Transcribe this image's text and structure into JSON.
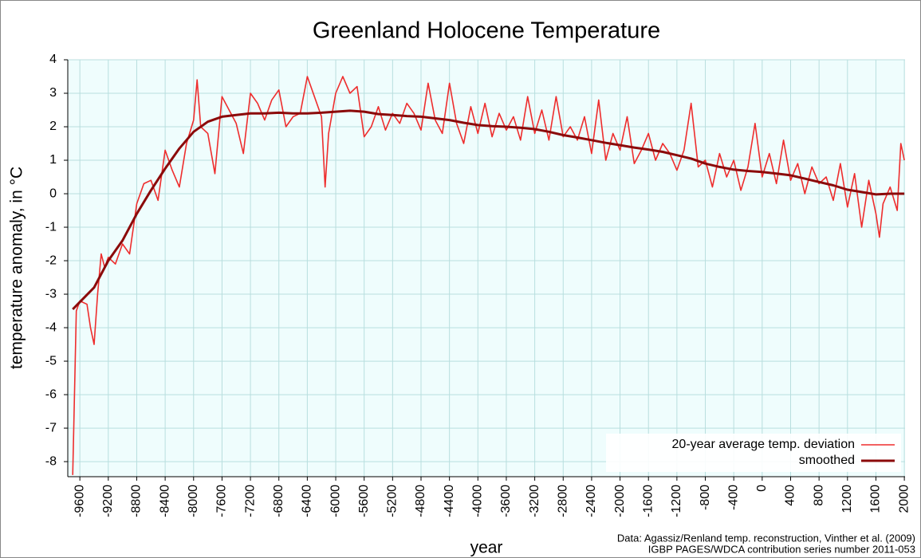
{
  "chart_data": {
    "type": "line",
    "title": "Greenland Holocene Temperature",
    "x_label": "year",
    "y_label": "temperature anomaly, in °C",
    "annotations": [
      "Data: Agassiz/Renland temp. reconstruction, Vinther et al. (2009)",
      "IGBP PAGES/WDCA contribution series number 2011-053"
    ],
    "xlim": [
      -9770,
      2010
    ],
    "ylim": [
      -8.45,
      4
    ],
    "xticks": [
      -9600,
      -9200,
      -8800,
      -8400,
      -8000,
      -7600,
      -7200,
      -6800,
      -6400,
      -6000,
      -5600,
      -5200,
      -4800,
      -4400,
      -4000,
      -3600,
      -3200,
      -2800,
      -2400,
      -2000,
      -1600,
      -1200,
      -800,
      -400,
      0,
      400,
      800,
      1200,
      1600,
      2000
    ],
    "yticks": [
      -8,
      -7,
      -6,
      -5,
      -4,
      -3,
      -2,
      -1,
      0,
      1,
      2,
      3,
      4
    ],
    "grid": true,
    "legend": "lower right",
    "background": "#effdfd",
    "series": [
      {
        "name": "20-year average temp. deviation",
        "color": "#ee2d2d",
        "width": 1.6,
        "x": [
          -9700,
          -9650,
          -9600,
          -9500,
          -9450,
          -9400,
          -9350,
          -9300,
          -9250,
          -9200,
          -9100,
          -9000,
          -8900,
          -8800,
          -8700,
          -8600,
          -8500,
          -8400,
          -8300,
          -8200,
          -8100,
          -8000,
          -7950,
          -7900,
          -7800,
          -7700,
          -7600,
          -7500,
          -7400,
          -7300,
          -7200,
          -7100,
          -7000,
          -6900,
          -6800,
          -6700,
          -6600,
          -6500,
          -6400,
          -6300,
          -6200,
          -6150,
          -6100,
          -6000,
          -5900,
          -5800,
          -5700,
          -5600,
          -5500,
          -5400,
          -5300,
          -5200,
          -5100,
          -5000,
          -4900,
          -4800,
          -4700,
          -4600,
          -4500,
          -4400,
          -4300,
          -4200,
          -4100,
          -4000,
          -3900,
          -3800,
          -3700,
          -3600,
          -3500,
          -3400,
          -3300,
          -3200,
          -3100,
          -3000,
          -2900,
          -2800,
          -2700,
          -2600,
          -2500,
          -2400,
          -2300,
          -2200,
          -2100,
          -2000,
          -1900,
          -1800,
          -1700,
          -1600,
          -1500,
          -1400,
          -1300,
          -1200,
          -1100,
          -1000,
          -900,
          -800,
          -700,
          -600,
          -500,
          -400,
          -300,
          -200,
          -100,
          0,
          100,
          200,
          300,
          400,
          500,
          600,
          700,
          800,
          900,
          1000,
          1100,
          1200,
          1300,
          1400,
          1500,
          1600,
          1650,
          1700,
          1800,
          1900,
          1950,
          2000
        ],
        "values": [
          -8.4,
          -3.5,
          -3.2,
          -3.3,
          -4.0,
          -4.5,
          -3.0,
          -1.8,
          -2.2,
          -1.9,
          -2.1,
          -1.5,
          -1.8,
          -0.3,
          0.3,
          0.4,
          -0.2,
          1.3,
          0.7,
          0.2,
          1.5,
          2.2,
          3.4,
          2.0,
          1.8,
          0.6,
          2.9,
          2.5,
          2.1,
          1.2,
          3.0,
          2.7,
          2.2,
          2.8,
          3.1,
          2.0,
          2.3,
          2.4,
          3.5,
          2.9,
          2.3,
          0.2,
          1.8,
          3.0,
          3.5,
          3.0,
          3.2,
          1.7,
          2.0,
          2.6,
          1.9,
          2.4,
          2.1,
          2.7,
          2.4,
          1.9,
          3.3,
          2.2,
          1.8,
          3.3,
          2.1,
          1.5,
          2.6,
          1.8,
          2.7,
          1.7,
          2.4,
          1.9,
          2.3,
          1.6,
          2.9,
          1.8,
          2.5,
          1.6,
          2.9,
          1.7,
          2.0,
          1.6,
          2.3,
          1.2,
          2.8,
          1.0,
          1.8,
          1.3,
          2.3,
          0.9,
          1.3,
          1.8,
          1.0,
          1.5,
          1.2,
          0.7,
          1.3,
          2.7,
          0.8,
          1.0,
          0.2,
          1.2,
          0.5,
          1.0,
          0.1,
          0.8,
          2.1,
          0.5,
          1.2,
          0.3,
          1.6,
          0.4,
          0.9,
          0.0,
          0.8,
          0.3,
          0.5,
          -0.2,
          0.9,
          -0.4,
          0.6,
          -1.0,
          0.4,
          -0.6,
          -1.3,
          -0.3,
          0.2,
          -0.5,
          1.5,
          1.0
        ]
      },
      {
        "name": "smoothed",
        "color": "#8b0a0a",
        "width": 3,
        "x": [
          -9700,
          -9400,
          -9200,
          -9000,
          -8800,
          -8600,
          -8400,
          -8200,
          -8000,
          -7800,
          -7600,
          -7400,
          -7200,
          -7000,
          -6800,
          -6600,
          -6400,
          -6200,
          -6000,
          -5800,
          -5600,
          -5400,
          -5200,
          -5000,
          -4800,
          -4600,
          -4400,
          -4200,
          -4000,
          -3800,
          -3600,
          -3400,
          -3200,
          -3000,
          -2800,
          -2600,
          -2400,
          -2200,
          -2000,
          -1800,
          -1600,
          -1400,
          -1200,
          -1000,
          -800,
          -600,
          -400,
          -200,
          0,
          200,
          400,
          600,
          800,
          1000,
          1200,
          1400,
          1600,
          1800,
          2000
        ],
        "values": [
          -3.45,
          -2.8,
          -2.0,
          -1.4,
          -0.6,
          0.1,
          0.75,
          1.35,
          1.85,
          2.15,
          2.3,
          2.35,
          2.4,
          2.4,
          2.42,
          2.4,
          2.4,
          2.42,
          2.45,
          2.48,
          2.45,
          2.38,
          2.35,
          2.32,
          2.3,
          2.25,
          2.2,
          2.12,
          2.05,
          2.02,
          2.0,
          1.97,
          1.93,
          1.85,
          1.75,
          1.68,
          1.6,
          1.52,
          1.45,
          1.38,
          1.32,
          1.25,
          1.15,
          1.05,
          0.9,
          0.8,
          0.72,
          0.68,
          0.65,
          0.6,
          0.55,
          0.45,
          0.35,
          0.25,
          0.12,
          0.05,
          -0.02,
          0.0,
          0.0
        ]
      }
    ]
  }
}
